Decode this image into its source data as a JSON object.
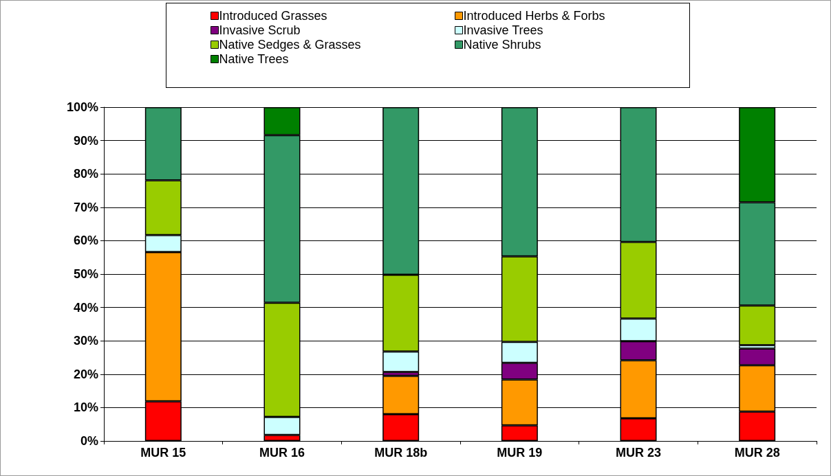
{
  "chart_data": {
    "type": "bar",
    "stacked": true,
    "categories": [
      "MUR 15",
      "MUR 16",
      "MUR 18b",
      "MUR 19",
      "MUR 23",
      "MUR 28"
    ],
    "series": [
      {
        "name": "Introduced Grasses",
        "color": "#ff0000",
        "values": [
          11.9,
          1.8,
          8.0,
          4.7,
          6.8,
          8.8
        ]
      },
      {
        "name": "Introduced Herbs & Forbs",
        "color": "#ff9900",
        "values": [
          44.7,
          0,
          11.5,
          13.7,
          17.4,
          13.9
        ]
      },
      {
        "name": "Invasive Scrub",
        "color": "#800080",
        "values": [
          0,
          0,
          1.2,
          5.0,
          5.7,
          5.0
        ]
      },
      {
        "name": "Invasive Trees",
        "color": "#ccffff",
        "values": [
          5.1,
          5.4,
          6.1,
          6.3,
          6.8,
          1.0
        ]
      },
      {
        "name": "Native Sedges & Grasses",
        "color": "#99cc00",
        "values": [
          16.4,
          34.2,
          23.0,
          25.6,
          22.9,
          11.9
        ]
      },
      {
        "name": "Native Shrubs",
        "color": "#339966",
        "values": [
          21.9,
          50.2,
          50.2,
          44.7,
          40.4,
          30.9
        ]
      },
      {
        "name": "Native Trees",
        "color": "#008000",
        "values": [
          0,
          8.4,
          0,
          0,
          0,
          28.5
        ]
      }
    ],
    "ylim": [
      0,
      100
    ],
    "yticks": [
      {
        "value": 0,
        "label": "0%"
      },
      {
        "value": 10,
        "label": "10%"
      },
      {
        "value": 20,
        "label": "20%"
      },
      {
        "value": 30,
        "label": "30%"
      },
      {
        "value": 40,
        "label": "40%"
      },
      {
        "value": 50,
        "label": "50%"
      },
      {
        "value": 60,
        "label": "60%"
      },
      {
        "value": 70,
        "label": "70%"
      },
      {
        "value": 80,
        "label": "80%"
      },
      {
        "value": 90,
        "label": "90%"
      },
      {
        "value": 100,
        "label": "100%"
      }
    ],
    "grid": "y",
    "legend": "top"
  }
}
